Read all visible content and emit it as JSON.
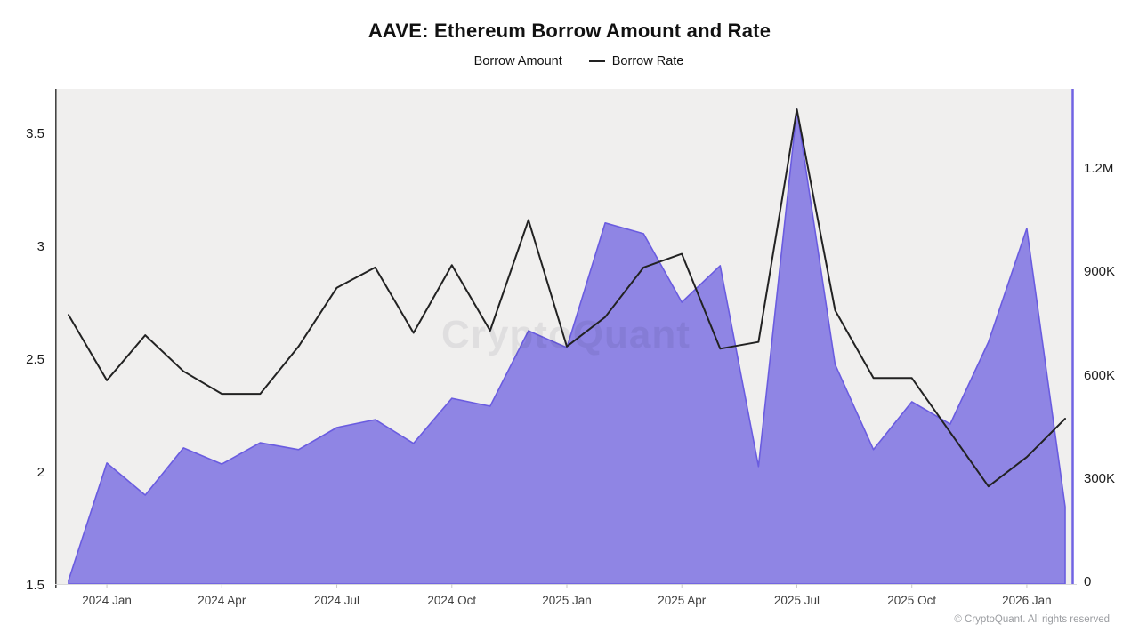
{
  "title": "AAVE: Ethereum Borrow Amount and Rate",
  "legend": {
    "items": [
      {
        "label": "Borrow Amount",
        "marker": "dot",
        "color": "#5143d8"
      },
      {
        "label": "Borrow Rate",
        "marker": "line",
        "color": "#222222"
      }
    ]
  },
  "watermark": "CryptoQuant",
  "footer": "© CryptoQuant. All rights reserved",
  "colors": {
    "plot_background": "#f0efee",
    "area_fill": "#6a5ce0",
    "area_fill_opacity": 0.72,
    "area_stroke": "#6a5ce0",
    "rate_line": "#222222",
    "left_axis_line": "#3b3b3b",
    "bottom_axis_line": "#d9d9d9",
    "tick_mark": "#c9c9c9",
    "right_axis_line": "#7163e3"
  },
  "chart_data": {
    "type": "area",
    "title": "AAVE: Ethereum Borrow Amount and Rate",
    "x": [
      "2023-12",
      "2024-01",
      "2024-02",
      "2024-03",
      "2024-04",
      "2024-05",
      "2024-06",
      "2024-07",
      "2024-08",
      "2024-09",
      "2024-10",
      "2024-11",
      "2024-12",
      "2025-01",
      "2025-02",
      "2025-03",
      "2025-04",
      "2025-05",
      "2025-06",
      "2025-07",
      "2025-08",
      "2025-09",
      "2025-10",
      "2025-11",
      "2025-12",
      "2026-01",
      "2026-02"
    ],
    "x_tick_labels": [
      "2024 Jan",
      "2024 Apr",
      "2024 Jul",
      "2024 Oct",
      "2025 Jan",
      "2025 Apr",
      "2025 Jul",
      "2025 Oct",
      "2026 Jan"
    ],
    "x_tick_indices": [
      1,
      4,
      7,
      10,
      13,
      16,
      19,
      22,
      25
    ],
    "series": [
      {
        "name": "Borrow Amount",
        "type": "area",
        "axis": "right",
        "values": [
          5000,
          346000,
          253000,
          390000,
          343000,
          405000,
          385000,
          449000,
          472000,
          403000,
          534000,
          511000,
          730000,
          681000,
          1043000,
          1012000,
          813000,
          919000,
          336000,
          1373000,
          632000,
          385000,
          524000,
          459000,
          697000,
          1027000,
          219000
        ]
      },
      {
        "name": "Borrow Rate",
        "type": "line",
        "axis": "left",
        "values": [
          2.7,
          2.41,
          2.61,
          2.45,
          2.35,
          2.35,
          2.56,
          2.82,
          2.91,
          2.62,
          2.92,
          2.63,
          3.12,
          2.56,
          2.69,
          2.91,
          2.97,
          2.55,
          2.58,
          3.61,
          2.72,
          2.42,
          2.42,
          2.18,
          1.94,
          2.07,
          2.24
        ]
      }
    ],
    "left_axis": {
      "ticks": [
        1.5,
        2,
        2.5,
        3,
        3.5
      ],
      "range": [
        1.5,
        3.7
      ],
      "label": ""
    },
    "right_axis": {
      "tick_labels": [
        "0",
        "300K",
        "600K",
        "900K",
        "1.2M"
      ],
      "tick_values": [
        0,
        300000,
        600000,
        900000,
        1200000
      ],
      "range": [
        0,
        1435000
      ],
      "label": ""
    },
    "grid": false,
    "legend_position": "top"
  }
}
